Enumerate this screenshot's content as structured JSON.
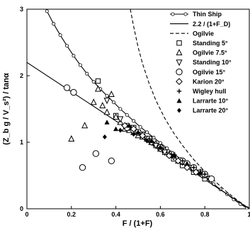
{
  "chart_data": {
    "type": "scatter",
    "xlabel": "F / (1+F)",
    "ylabel": "(Z_b g / V_s²) / tanα",
    "xlim": [
      0,
      1
    ],
    "ylim": [
      0,
      3
    ],
    "x_ticks": [
      {
        "value": 0,
        "label": "0"
      },
      {
        "value": 0.2,
        "label": "0.2"
      },
      {
        "value": 0.4,
        "label": "0.4"
      },
      {
        "value": 0.6,
        "label": "0.6"
      },
      {
        "value": 0.8,
        "label": "0.8"
      },
      {
        "value": 1,
        "label": "1"
      }
    ],
    "y_ticks": [
      {
        "value": 0,
        "label": "0"
      },
      {
        "value": 1,
        "label": "1"
      },
      {
        "value": 2,
        "label": "2"
      },
      {
        "value": 3,
        "label": "3"
      }
    ],
    "grid": false,
    "legend_position": "top-right",
    "series": [
      {
        "name": "Thin Ship",
        "kind": "line",
        "style": "solid-circles",
        "x": [
          0.09,
          0.12,
          0.15,
          0.18,
          0.21,
          0.24,
          0.27,
          0.3,
          0.33,
          0.36,
          0.39,
          0.42,
          0.45,
          0.48,
          0.51,
          0.54,
          0.57,
          0.6,
          0.63,
          0.66,
          0.69,
          0.72,
          0.75,
          0.78,
          0.81,
          0.84,
          0.87,
          0.9,
          0.93,
          0.96,
          0.99
        ],
        "y": [
          2.97,
          2.78,
          2.61,
          2.45,
          2.3,
          2.16,
          2.03,
          1.91,
          1.8,
          1.7,
          1.6,
          1.5,
          1.41,
          1.32,
          1.23,
          1.15,
          1.07,
          0.99,
          0.91,
          0.83,
          0.75,
          0.68,
          0.6,
          0.52,
          0.45,
          0.37,
          0.29,
          0.22,
          0.14,
          0.07,
          0.01
        ]
      },
      {
        "name": "2.2 / (1+F_D)",
        "kind": "line",
        "style": "solid",
        "x": [
          0,
          1
        ],
        "y": [
          2.2,
          0
        ]
      },
      {
        "name": "Ogilvie",
        "kind": "line",
        "style": "dashed",
        "x": [
          0.465,
          0.48,
          0.5,
          0.52,
          0.55,
          0.58,
          0.62,
          0.66,
          0.7,
          0.75,
          0.8,
          0.85,
          0.9,
          0.95,
          1.0
        ],
        "y": [
          3.0,
          2.74,
          2.43,
          2.18,
          1.88,
          1.63,
          1.36,
          1.14,
          0.95,
          0.74,
          0.56,
          0.4,
          0.25,
          0.12,
          0.0
        ]
      },
      {
        "name": "Standing 5°",
        "kind": "points",
        "marker": "square",
        "x": [
          0.32,
          0.4,
          0.45,
          0.48,
          0.52,
          0.55,
          0.58,
          0.62,
          0.66,
          0.7,
          0.75,
          0.8
        ],
        "y": [
          1.92,
          1.4,
          1.25,
          1.22,
          1.12,
          1.05,
          0.95,
          0.85,
          0.75,
          0.65,
          0.55,
          0.45
        ]
      },
      {
        "name": "Ogilvie 7.5°",
        "kind": "points",
        "marker": "triangle-up",
        "x": [
          0.2,
          0.26,
          0.3,
          0.32,
          0.34,
          0.36,
          0.38,
          0.4,
          0.42,
          0.44,
          0.46,
          0.48,
          0.5,
          0.52,
          0.54,
          0.56,
          0.58,
          0.6,
          0.62,
          0.64,
          0.66,
          0.68,
          0.7,
          0.72,
          0.75,
          0.78,
          0.8
        ],
        "y": [
          1.05,
          1.25,
          1.6,
          1.8,
          1.55,
          1.45,
          1.72,
          1.38,
          1.3,
          1.2,
          1.18,
          1.15,
          1.1,
          1.08,
          1.05,
          1.0,
          0.98,
          0.9,
          0.88,
          0.82,
          0.8,
          0.72,
          0.7,
          0.65,
          0.6,
          0.55,
          0.5
        ]
      },
      {
        "name": "Standing 10°",
        "kind": "points",
        "marker": "triangle-down",
        "x": [
          0.36,
          0.42,
          0.46,
          0.5,
          0.54,
          0.58,
          0.62,
          0.66,
          0.7,
          0.74,
          0.78,
          0.82
        ],
        "y": [
          1.63,
          1.35,
          1.22,
          1.15,
          1.05,
          0.95,
          0.85,
          0.78,
          0.7,
          0.62,
          0.55,
          0.45
        ]
      },
      {
        "name": "Ogilvie 15°",
        "kind": "points",
        "marker": "circle",
        "x": [
          0.18,
          0.21,
          0.25,
          0.31,
          0.38,
          0.45,
          0.48,
          0.5,
          0.55,
          0.6,
          0.65,
          0.7,
          0.72,
          0.75,
          0.8,
          0.83
        ],
        "y": [
          1.82,
          1.75,
          0.62,
          0.83,
          0.72,
          1.22,
          1.18,
          1.15,
          1.05,
          0.92,
          0.82,
          0.72,
          0.68,
          0.62,
          0.52,
          0.45
        ]
      },
      {
        "name": "Karion 20°",
        "kind": "points",
        "marker": "diamond",
        "x": [
          0.44,
          0.48,
          0.52,
          0.56,
          0.6,
          0.64,
          0.68,
          0.72,
          0.76
        ],
        "y": [
          1.25,
          1.2,
          1.1,
          1.0,
          0.9,
          0.8,
          0.72,
          0.62,
          0.55
        ]
      },
      {
        "name": "Wigley hull",
        "kind": "points",
        "marker": "plus",
        "x": [
          0.5,
          0.55,
          0.6,
          0.65,
          0.7,
          0.75,
          0.8
        ],
        "y": [
          1.15,
          1.05,
          0.92,
          0.82,
          0.72,
          0.62,
          0.52
        ]
      },
      {
        "name": "Larrarte 10°",
        "kind": "points",
        "marker": "filled-triangle",
        "x": [
          0.36,
          0.4,
          0.46,
          0.5,
          0.56,
          0.6,
          0.66,
          0.72,
          0.78
        ],
        "y": [
          1.3,
          1.2,
          1.25,
          1.15,
          1.02,
          0.92,
          0.8,
          0.68,
          0.55
        ]
      },
      {
        "name": "Larrarte 20°",
        "kind": "points",
        "marker": "filled-diamond",
        "x": [
          0.35,
          0.42,
          0.48,
          0.54,
          0.6,
          0.66
        ],
        "y": [
          1.08,
          1.18,
          1.12,
          1.02,
          0.92,
          0.8
        ]
      }
    ]
  }
}
